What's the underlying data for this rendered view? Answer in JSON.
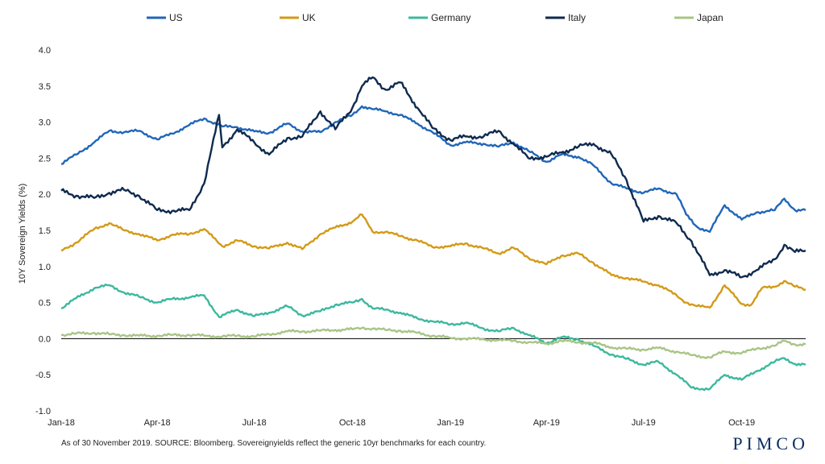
{
  "chart_data": {
    "type": "line",
    "ylabel": "10Y Sovereign Yields (%)",
    "ylim": [
      -1.0,
      4.0
    ],
    "yticks": [
      -1.0,
      -0.5,
      0.0,
      0.5,
      1.0,
      1.5,
      2.0,
      2.5,
      3.0,
      3.5,
      4.0
    ],
    "ytick_labels": [
      "-1.0",
      "-0.5",
      "0.0",
      "0.5",
      "1.0",
      "1.5",
      "2.0",
      "2.5",
      "3.0",
      "3.5",
      "4.0"
    ],
    "xlim": [
      "2018-01-01",
      "2019-11-30"
    ],
    "xticks": [
      "2018-01-01",
      "2018-04-01",
      "2018-07-01",
      "2018-10-01",
      "2019-01-01",
      "2019-04-01",
      "2019-07-01",
      "2019-10-01"
    ],
    "xtick_labels": [
      "Jan-18",
      "Apr-18",
      "Jul-18",
      "Oct-18",
      "Jan-19",
      "Apr-19",
      "Jul-19",
      "Oct-19"
    ],
    "grid": false,
    "zero_line": true,
    "legend_position": "top",
    "series": [
      {
        "name": "US",
        "color": "#2066b8",
        "points": [
          [
            "2018-01-01",
            2.42
          ],
          [
            "2018-01-15",
            2.55
          ],
          [
            "2018-02-01",
            2.72
          ],
          [
            "2018-02-15",
            2.88
          ],
          [
            "2018-03-01",
            2.86
          ],
          [
            "2018-03-15",
            2.88
          ],
          [
            "2018-04-01",
            2.76
          ],
          [
            "2018-04-15",
            2.84
          ],
          [
            "2018-05-01",
            2.96
          ],
          [
            "2018-05-15",
            3.05
          ],
          [
            "2018-06-01",
            2.94
          ],
          [
            "2018-06-15",
            2.93
          ],
          [
            "2018-07-01",
            2.87
          ],
          [
            "2018-07-15",
            2.85
          ],
          [
            "2018-08-01",
            2.98
          ],
          [
            "2018-08-15",
            2.87
          ],
          [
            "2018-09-01",
            2.86
          ],
          [
            "2018-09-15",
            3.0
          ],
          [
            "2018-10-01",
            3.1
          ],
          [
            "2018-10-10",
            3.22
          ],
          [
            "2018-10-20",
            3.18
          ],
          [
            "2018-11-01",
            3.15
          ],
          [
            "2018-11-15",
            3.1
          ],
          [
            "2018-12-01",
            2.98
          ],
          [
            "2018-12-15",
            2.86
          ],
          [
            "2019-01-01",
            2.68
          ],
          [
            "2019-01-15",
            2.72
          ],
          [
            "2019-02-01",
            2.7
          ],
          [
            "2019-02-15",
            2.66
          ],
          [
            "2019-03-01",
            2.72
          ],
          [
            "2019-03-15",
            2.6
          ],
          [
            "2019-04-01",
            2.45
          ],
          [
            "2019-04-15",
            2.55
          ],
          [
            "2019-05-01",
            2.52
          ],
          [
            "2019-05-15",
            2.4
          ],
          [
            "2019-06-01",
            2.15
          ],
          [
            "2019-06-15",
            2.08
          ],
          [
            "2019-07-01",
            2.02
          ],
          [
            "2019-07-15",
            2.08
          ],
          [
            "2019-08-01",
            2.0
          ],
          [
            "2019-08-10",
            1.72
          ],
          [
            "2019-08-20",
            1.55
          ],
          [
            "2019-09-01",
            1.48
          ],
          [
            "2019-09-15",
            1.85
          ],
          [
            "2019-10-01",
            1.65
          ],
          [
            "2019-10-15",
            1.75
          ],
          [
            "2019-11-01",
            1.78
          ],
          [
            "2019-11-10",
            1.94
          ],
          [
            "2019-11-20",
            1.78
          ],
          [
            "2019-11-30",
            1.78
          ]
        ]
      },
      {
        "name": "UK",
        "color": "#d39a17",
        "points": [
          [
            "2018-01-01",
            1.22
          ],
          [
            "2018-01-15",
            1.33
          ],
          [
            "2018-02-01",
            1.52
          ],
          [
            "2018-02-15",
            1.6
          ],
          [
            "2018-03-01",
            1.5
          ],
          [
            "2018-03-15",
            1.45
          ],
          [
            "2018-04-01",
            1.36
          ],
          [
            "2018-04-15",
            1.44
          ],
          [
            "2018-05-01",
            1.45
          ],
          [
            "2018-05-15",
            1.52
          ],
          [
            "2018-06-01",
            1.28
          ],
          [
            "2018-06-15",
            1.36
          ],
          [
            "2018-07-01",
            1.28
          ],
          [
            "2018-07-15",
            1.25
          ],
          [
            "2018-08-01",
            1.33
          ],
          [
            "2018-08-15",
            1.24
          ],
          [
            "2018-09-01",
            1.45
          ],
          [
            "2018-09-15",
            1.54
          ],
          [
            "2018-10-01",
            1.62
          ],
          [
            "2018-10-10",
            1.72
          ],
          [
            "2018-10-20",
            1.48
          ],
          [
            "2018-11-01",
            1.48
          ],
          [
            "2018-11-15",
            1.42
          ],
          [
            "2018-12-01",
            1.36
          ],
          [
            "2018-12-15",
            1.27
          ],
          [
            "2019-01-01",
            1.28
          ],
          [
            "2019-01-15",
            1.32
          ],
          [
            "2019-02-01",
            1.25
          ],
          [
            "2019-02-15",
            1.18
          ],
          [
            "2019-03-01",
            1.26
          ],
          [
            "2019-03-15",
            1.12
          ],
          [
            "2019-04-01",
            1.03
          ],
          [
            "2019-04-15",
            1.15
          ],
          [
            "2019-05-01",
            1.18
          ],
          [
            "2019-05-15",
            1.05
          ],
          [
            "2019-06-01",
            0.88
          ],
          [
            "2019-06-15",
            0.84
          ],
          [
            "2019-07-01",
            0.79
          ],
          [
            "2019-07-15",
            0.74
          ],
          [
            "2019-08-01",
            0.6
          ],
          [
            "2019-08-10",
            0.5
          ],
          [
            "2019-08-20",
            0.45
          ],
          [
            "2019-09-01",
            0.43
          ],
          [
            "2019-09-15",
            0.74
          ],
          [
            "2019-10-01",
            0.48
          ],
          [
            "2019-10-10",
            0.47
          ],
          [
            "2019-10-20",
            0.7
          ],
          [
            "2019-11-01",
            0.72
          ],
          [
            "2019-11-10",
            0.8
          ],
          [
            "2019-11-20",
            0.72
          ],
          [
            "2019-11-30",
            0.68
          ]
        ]
      },
      {
        "name": "Germany",
        "color": "#3cb89e",
        "points": [
          [
            "2018-01-01",
            0.42
          ],
          [
            "2018-01-15",
            0.56
          ],
          [
            "2018-02-01",
            0.7
          ],
          [
            "2018-02-15",
            0.74
          ],
          [
            "2018-03-01",
            0.64
          ],
          [
            "2018-03-15",
            0.58
          ],
          [
            "2018-04-01",
            0.5
          ],
          [
            "2018-04-15",
            0.55
          ],
          [
            "2018-05-01",
            0.57
          ],
          [
            "2018-05-15",
            0.6
          ],
          [
            "2018-05-29",
            0.3
          ],
          [
            "2018-06-15",
            0.4
          ],
          [
            "2018-07-01",
            0.31
          ],
          [
            "2018-07-15",
            0.36
          ],
          [
            "2018-08-01",
            0.45
          ],
          [
            "2018-08-15",
            0.32
          ],
          [
            "2018-09-01",
            0.38
          ],
          [
            "2018-09-15",
            0.47
          ],
          [
            "2018-10-01",
            0.5
          ],
          [
            "2018-10-10",
            0.55
          ],
          [
            "2018-10-20",
            0.42
          ],
          [
            "2018-11-01",
            0.4
          ],
          [
            "2018-11-15",
            0.36
          ],
          [
            "2018-12-01",
            0.28
          ],
          [
            "2018-12-15",
            0.24
          ],
          [
            "2019-01-01",
            0.2
          ],
          [
            "2019-01-15",
            0.22
          ],
          [
            "2019-02-01",
            0.14
          ],
          [
            "2019-02-15",
            0.1
          ],
          [
            "2019-03-01",
            0.15
          ],
          [
            "2019-03-15",
            0.05
          ],
          [
            "2019-04-01",
            -0.06
          ],
          [
            "2019-04-15",
            0.02
          ],
          [
            "2019-05-01",
            -0.01
          ],
          [
            "2019-05-15",
            -0.1
          ],
          [
            "2019-06-01",
            -0.22
          ],
          [
            "2019-06-15",
            -0.28
          ],
          [
            "2019-07-01",
            -0.36
          ],
          [
            "2019-07-15",
            -0.32
          ],
          [
            "2019-08-01",
            -0.5
          ],
          [
            "2019-08-15",
            -0.68
          ],
          [
            "2019-09-01",
            -0.7
          ],
          [
            "2019-09-15",
            -0.5
          ],
          [
            "2019-10-01",
            -0.57
          ],
          [
            "2019-10-15",
            -0.45
          ],
          [
            "2019-11-01",
            -0.32
          ],
          [
            "2019-11-10",
            -0.27
          ],
          [
            "2019-11-20",
            -0.35
          ],
          [
            "2019-11-30",
            -0.36
          ]
        ]
      },
      {
        "name": "Italy",
        "color": "#0f2a4e",
        "points": [
          [
            "2018-01-01",
            2.05
          ],
          [
            "2018-01-15",
            1.98
          ],
          [
            "2018-02-01",
            1.95
          ],
          [
            "2018-02-15",
            2.02
          ],
          [
            "2018-03-01",
            2.06
          ],
          [
            "2018-03-15",
            1.98
          ],
          [
            "2018-04-01",
            1.78
          ],
          [
            "2018-04-15",
            1.77
          ],
          [
            "2018-05-01",
            1.78
          ],
          [
            "2018-05-15",
            2.15
          ],
          [
            "2018-05-29",
            3.1
          ],
          [
            "2018-06-01",
            2.65
          ],
          [
            "2018-06-15",
            2.9
          ],
          [
            "2018-07-01",
            2.72
          ],
          [
            "2018-07-15",
            2.55
          ],
          [
            "2018-08-01",
            2.78
          ],
          [
            "2018-08-15",
            2.8
          ],
          [
            "2018-09-01",
            3.15
          ],
          [
            "2018-09-15",
            2.9
          ],
          [
            "2018-10-01",
            3.2
          ],
          [
            "2018-10-10",
            3.5
          ],
          [
            "2018-10-20",
            3.62
          ],
          [
            "2018-11-01",
            3.45
          ],
          [
            "2018-11-15",
            3.55
          ],
          [
            "2018-12-01",
            3.2
          ],
          [
            "2018-12-15",
            2.92
          ],
          [
            "2019-01-01",
            2.75
          ],
          [
            "2019-01-15",
            2.8
          ],
          [
            "2019-02-01",
            2.8
          ],
          [
            "2019-02-15",
            2.88
          ],
          [
            "2019-03-01",
            2.7
          ],
          [
            "2019-03-15",
            2.5
          ],
          [
            "2019-04-01",
            2.52
          ],
          [
            "2019-04-15",
            2.58
          ],
          [
            "2019-05-01",
            2.66
          ],
          [
            "2019-05-15",
            2.7
          ],
          [
            "2019-06-01",
            2.55
          ],
          [
            "2019-06-15",
            2.2
          ],
          [
            "2019-07-01",
            1.62
          ],
          [
            "2019-07-15",
            1.7
          ],
          [
            "2019-08-01",
            1.6
          ],
          [
            "2019-08-15",
            1.35
          ],
          [
            "2019-09-01",
            0.88
          ],
          [
            "2019-09-15",
            0.95
          ],
          [
            "2019-10-01",
            0.85
          ],
          [
            "2019-10-15",
            0.95
          ],
          [
            "2019-11-01",
            1.1
          ],
          [
            "2019-11-10",
            1.3
          ],
          [
            "2019-11-20",
            1.2
          ],
          [
            "2019-11-30",
            1.22
          ]
        ]
      },
      {
        "name": "Japan",
        "color": "#a8c585",
        "points": [
          [
            "2018-01-01",
            0.05
          ],
          [
            "2018-01-15",
            0.07
          ],
          [
            "2018-02-01",
            0.08
          ],
          [
            "2018-02-15",
            0.06
          ],
          [
            "2018-03-01",
            0.05
          ],
          [
            "2018-03-15",
            0.04
          ],
          [
            "2018-04-01",
            0.04
          ],
          [
            "2018-04-15",
            0.05
          ],
          [
            "2018-05-01",
            0.05
          ],
          [
            "2018-05-15",
            0.04
          ],
          [
            "2018-06-01",
            0.03
          ],
          [
            "2018-06-15",
            0.04
          ],
          [
            "2018-07-01",
            0.03
          ],
          [
            "2018-07-15",
            0.06
          ],
          [
            "2018-08-01",
            0.1
          ],
          [
            "2018-08-15",
            0.1
          ],
          [
            "2018-09-01",
            0.11
          ],
          [
            "2018-09-15",
            0.12
          ],
          [
            "2018-10-01",
            0.13
          ],
          [
            "2018-10-10",
            0.15
          ],
          [
            "2018-10-20",
            0.14
          ],
          [
            "2018-11-01",
            0.12
          ],
          [
            "2018-11-15",
            0.11
          ],
          [
            "2018-12-01",
            0.08
          ],
          [
            "2018-12-15",
            0.04
          ],
          [
            "2019-01-01",
            0.01
          ],
          [
            "2019-01-15",
            0.0
          ],
          [
            "2019-02-01",
            -0.01
          ],
          [
            "2019-02-15",
            -0.02
          ],
          [
            "2019-03-01",
            -0.03
          ],
          [
            "2019-03-15",
            -0.05
          ],
          [
            "2019-04-01",
            -0.07
          ],
          [
            "2019-04-15",
            -0.03
          ],
          [
            "2019-05-01",
            -0.05
          ],
          [
            "2019-05-15",
            -0.06
          ],
          [
            "2019-06-01",
            -0.12
          ],
          [
            "2019-06-15",
            -0.14
          ],
          [
            "2019-07-01",
            -0.15
          ],
          [
            "2019-07-15",
            -0.13
          ],
          [
            "2019-08-01",
            -0.18
          ],
          [
            "2019-08-15",
            -0.23
          ],
          [
            "2019-09-01",
            -0.26
          ],
          [
            "2019-09-15",
            -0.18
          ],
          [
            "2019-10-01",
            -0.2
          ],
          [
            "2019-10-15",
            -0.14
          ],
          [
            "2019-11-01",
            -0.1
          ],
          [
            "2019-11-10",
            -0.03
          ],
          [
            "2019-11-20",
            -0.08
          ],
          [
            "2019-11-30",
            -0.08
          ]
        ]
      }
    ]
  },
  "footnote": "As of 30 November 2019. SOURCE: Bloomberg.  Sovereignyields reflect the generic 10yr benchmarks for each country.",
  "logo": "PIMCO"
}
